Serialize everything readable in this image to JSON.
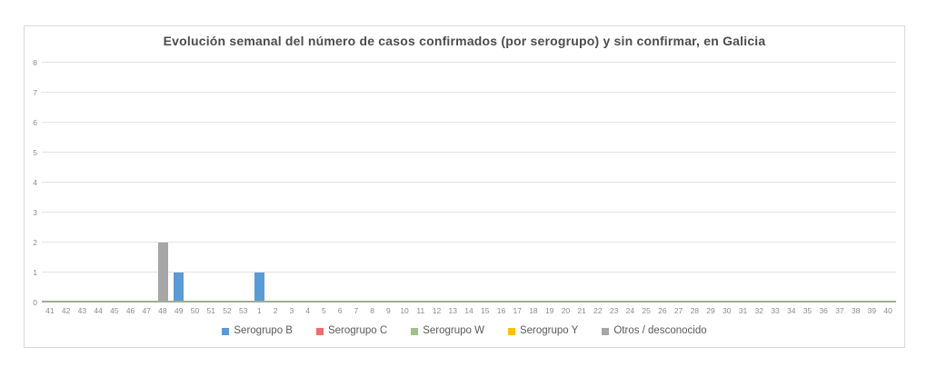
{
  "chart_data": {
    "type": "bar",
    "title": "Evolución semanal del número de casos confirmados (por serogrupo) y sin confirmar, en Galicia",
    "xlabel": "",
    "ylabel": "",
    "ylim": [
      0,
      8
    ],
    "yticks": [
      0,
      1,
      2,
      3,
      4,
      5,
      6,
      7,
      8
    ],
    "grid": true,
    "legend_position": "bottom",
    "axis_line_color": "#9fae93",
    "gridline_color": "#e3e3e3",
    "categories": [
      "41",
      "42",
      "43",
      "44",
      "45",
      "46",
      "47",
      "48",
      "49",
      "50",
      "51",
      "52",
      "53",
      "1",
      "2",
      "3",
      "4",
      "5",
      "6",
      "7",
      "8",
      "9",
      "10",
      "11",
      "12",
      "13",
      "14",
      "15",
      "16",
      "17",
      "18",
      "19",
      "20",
      "21",
      "22",
      "23",
      "24",
      "25",
      "26",
      "27",
      "28",
      "29",
      "30",
      "31",
      "32",
      "33",
      "34",
      "35",
      "36",
      "37",
      "38",
      "39",
      "40"
    ],
    "series": [
      {
        "name": "Serogrupo B",
        "color": "#5b9bd5",
        "values": [
          0,
          0,
          0,
          0,
          0,
          0,
          0,
          0,
          1,
          0,
          0,
          0,
          0,
          1,
          0,
          0,
          0,
          0,
          0,
          0,
          0,
          0,
          0,
          0,
          0,
          0,
          0,
          0,
          0,
          0,
          0,
          0,
          0,
          0,
          0,
          0,
          0,
          0,
          0,
          0,
          0,
          0,
          0,
          0,
          0,
          0,
          0,
          0,
          0,
          0,
          0,
          0,
          0
        ]
      },
      {
        "name": "Serogrupo C",
        "color": "#ed6d6d",
        "values": [
          0,
          0,
          0,
          0,
          0,
          0,
          0,
          0,
          0,
          0,
          0,
          0,
          0,
          0,
          0,
          0,
          0,
          0,
          0,
          0,
          0,
          0,
          0,
          0,
          0,
          0,
          0,
          0,
          0,
          0,
          0,
          0,
          0,
          0,
          0,
          0,
          0,
          0,
          0,
          0,
          0,
          0,
          0,
          0,
          0,
          0,
          0,
          0,
          0,
          0,
          0,
          0,
          0
        ]
      },
      {
        "name": "Serogrupo W",
        "color": "#a2c086",
        "values": [
          0,
          0,
          0,
          0,
          0,
          0,
          0,
          0,
          0,
          0,
          0,
          0,
          0,
          0,
          0,
          0,
          0,
          0,
          0,
          0,
          0,
          0,
          0,
          0,
          0,
          0,
          0,
          0,
          0,
          0,
          0,
          0,
          0,
          0,
          0,
          0,
          0,
          0,
          0,
          0,
          0,
          0,
          0,
          0,
          0,
          0,
          0,
          0,
          0,
          0,
          0,
          0,
          0
        ]
      },
      {
        "name": "Serogrupo Y",
        "color": "#ffc000",
        "values": [
          0,
          0,
          0,
          0,
          0,
          0,
          0,
          0,
          0,
          0,
          0,
          0,
          0,
          0,
          0,
          0,
          0,
          0,
          0,
          0,
          0,
          0,
          0,
          0,
          0,
          0,
          0,
          0,
          0,
          0,
          0,
          0,
          0,
          0,
          0,
          0,
          0,
          0,
          0,
          0,
          0,
          0,
          0,
          0,
          0,
          0,
          0,
          0,
          0,
          0,
          0,
          0,
          0
        ]
      },
      {
        "name": "Otros / desconocido",
        "color": "#a6a6a6",
        "values": [
          0,
          0,
          0,
          0,
          0,
          0,
          0,
          2,
          0,
          0,
          0,
          0,
          0,
          0,
          0,
          0,
          0,
          0,
          0,
          0,
          0,
          0,
          0,
          0,
          0,
          0,
          0,
          0,
          0,
          0,
          0,
          0,
          0,
          0,
          0,
          0,
          0,
          0,
          0,
          0,
          0,
          0,
          0,
          0,
          0,
          0,
          0,
          0,
          0,
          0,
          0,
          0,
          0
        ]
      }
    ]
  }
}
